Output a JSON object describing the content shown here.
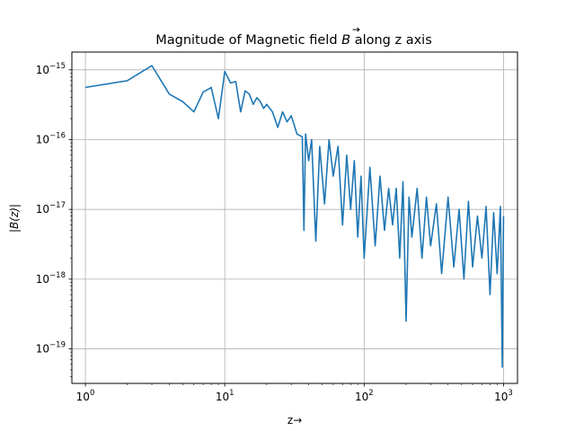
{
  "chart_data": {
    "type": "line",
    "title": "Magnitude of Magnetic field B⃗ along z axis",
    "title_prefix": "Magnitude of Magnetic field ",
    "title_symbol": "B",
    "title_suffix": " along z axis",
    "xlabel": "z→",
    "ylabel": "|B(z)|",
    "x_scale": "log",
    "y_scale": "log",
    "xlim": [
      0.8,
      1260
    ],
    "ylim": [
      3.2e-20,
      1.8e-15
    ],
    "grid": true,
    "line_color": "#1f77b4",
    "x_ticks": [
      {
        "value": 1,
        "base": "10",
        "exp": "0"
      },
      {
        "value": 10,
        "base": "10",
        "exp": "1"
      },
      {
        "value": 100,
        "base": "10",
        "exp": "2"
      },
      {
        "value": 1000,
        "base": "10",
        "exp": "3"
      }
    ],
    "y_ticks": [
      {
        "value": 1e-19,
        "base": "10",
        "exp": "−19"
      },
      {
        "value": 1e-18,
        "base": "10",
        "exp": "−18"
      },
      {
        "value": 1e-17,
        "base": "10",
        "exp": "−17"
      },
      {
        "value": 1e-16,
        "base": "10",
        "exp": "−16"
      },
      {
        "value": 1e-15,
        "base": "10",
        "exp": "−15"
      }
    ],
    "series": [
      {
        "x": [
          1,
          2,
          3,
          4,
          5,
          6,
          7,
          8,
          9,
          10,
          11,
          12,
          13,
          14,
          15,
          16,
          17,
          18,
          19,
          20,
          22,
          24,
          26,
          28,
          30,
          33,
          36,
          37,
          38,
          40,
          42,
          45,
          48,
          52,
          56,
          60,
          65,
          70,
          75,
          80,
          85,
          90,
          95,
          100,
          110,
          120,
          130,
          140,
          150,
          160,
          170,
          180,
          190,
          200,
          210,
          220,
          240,
          260,
          280,
          300,
          330,
          360,
          400,
          440,
          480,
          520,
          560,
          600,
          650,
          700,
          750,
          800,
          850,
          900,
          950,
          980,
          1000
        ],
        "y": [
          5.6e-16,
          7e-16,
          1.15e-15,
          4.5e-16,
          3.5e-16,
          2.5e-16,
          4.8e-16,
          5.6e-16,
          2e-16,
          9.5e-16,
          6.5e-16,
          6.8e-16,
          2.5e-16,
          5e-16,
          4.5e-16,
          3.2e-16,
          4e-16,
          3.5e-16,
          2.8e-16,
          3.2e-16,
          2.5e-16,
          1.5e-16,
          2.5e-16,
          1.8e-16,
          2.2e-16,
          1.2e-16,
          1.1e-16,
          5e-18,
          1.2e-16,
          5e-17,
          1e-16,
          3.5e-18,
          8e-17,
          1.2e-17,
          1e-16,
          3e-17,
          8e-17,
          6e-18,
          6e-17,
          1e-17,
          5e-17,
          4e-18,
          3e-17,
          2e-18,
          4e-17,
          3e-18,
          3e-17,
          5e-18,
          2e-17,
          6e-18,
          2e-17,
          2e-18,
          2.5e-17,
          2.5e-19,
          1.5e-17,
          4e-18,
          2e-17,
          2e-18,
          1.5e-17,
          3e-18,
          1.2e-17,
          1.2e-18,
          1.5e-17,
          1.5e-18,
          1e-17,
          1e-18,
          1.3e-17,
          1.5e-18,
          8e-18,
          2e-18,
          1.1e-17,
          6e-19,
          9e-18,
          1.2e-18,
          1.1e-17,
          5.5e-20,
          8e-18
        ]
      }
    ]
  }
}
